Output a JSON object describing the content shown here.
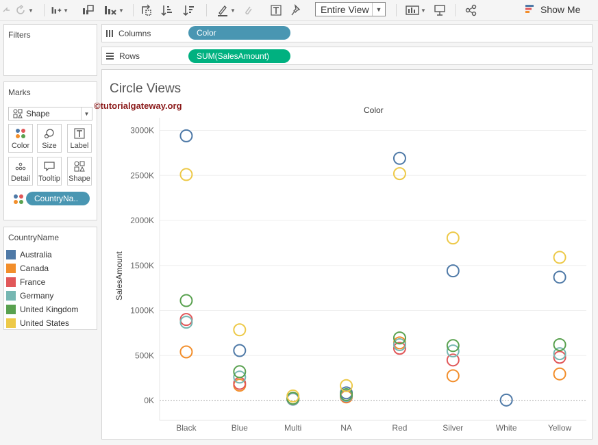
{
  "toolbar": {
    "fit_label": "Entire View",
    "show_me_label": "Show Me"
  },
  "filters": {
    "title": "Filters"
  },
  "marks": {
    "title": "Marks",
    "mark_type": "Shape",
    "buttons": {
      "color": "Color",
      "size": "Size",
      "label": "Label",
      "detail": "Detail",
      "tooltip": "Tooltip",
      "shape": "Shape"
    },
    "color_pill": "CountryNa.."
  },
  "legend": {
    "title": "CountryName",
    "items": [
      {
        "label": "Australia",
        "color": "#4e79a7"
      },
      {
        "label": "Canada",
        "color": "#f28e2b"
      },
      {
        "label": "France",
        "color": "#e15759"
      },
      {
        "label": "Germany",
        "color": "#76b7b2"
      },
      {
        "label": "United Kingdom",
        "color": "#59a14f"
      },
      {
        "label": "United States",
        "color": "#edc948"
      }
    ]
  },
  "shelves": {
    "columns_label": "Columns",
    "columns_pill": "Color",
    "columns_pill_color": "#4996b2",
    "rows_label": "Rows",
    "rows_pill": "SUM(SalesAmount)",
    "rows_pill_color": "#00b180"
  },
  "viz": {
    "title": "Circle Views",
    "watermark": "©tutorialgateway.org",
    "column_header": "Color"
  },
  "chart_data": {
    "type": "scatter",
    "mark": "open circle",
    "xlabel": "",
    "ylabel": "SalesAmount",
    "categories": [
      "Black",
      "Blue",
      "Multi",
      "NA",
      "Red",
      "Silver",
      "White",
      "Yellow"
    ],
    "y_ticks": [
      "0K",
      "500K",
      "1000K",
      "1500K",
      "2000K",
      "2500K",
      "3000K"
    ],
    "ylim": [
      -200,
      3100
    ],
    "grid": true,
    "series": [
      {
        "name": "Australia",
        "color": "#4e79a7",
        "values": [
          2940,
          555,
          15,
          85,
          2690,
          1440,
          5,
          1370
        ]
      },
      {
        "name": "Canada",
        "color": "#f28e2b",
        "values": [
          540,
          170,
          25,
          40,
          640,
          275,
          null,
          295
        ]
      },
      {
        "name": "France",
        "color": "#e15759",
        "values": [
          900,
          190,
          20,
          50,
          580,
          450,
          null,
          480
        ]
      },
      {
        "name": "Germany",
        "color": "#76b7b2",
        "values": [
          870,
          260,
          20,
          55,
          620,
          550,
          null,
          520
        ]
      },
      {
        "name": "United Kingdom",
        "color": "#59a14f",
        "values": [
          1110,
          320,
          25,
          65,
          695,
          610,
          null,
          620
        ]
      },
      {
        "name": "United States",
        "color": "#edc948",
        "values": [
          2510,
          785,
          50,
          165,
          2520,
          1805,
          null,
          1590
        ]
      }
    ]
  }
}
